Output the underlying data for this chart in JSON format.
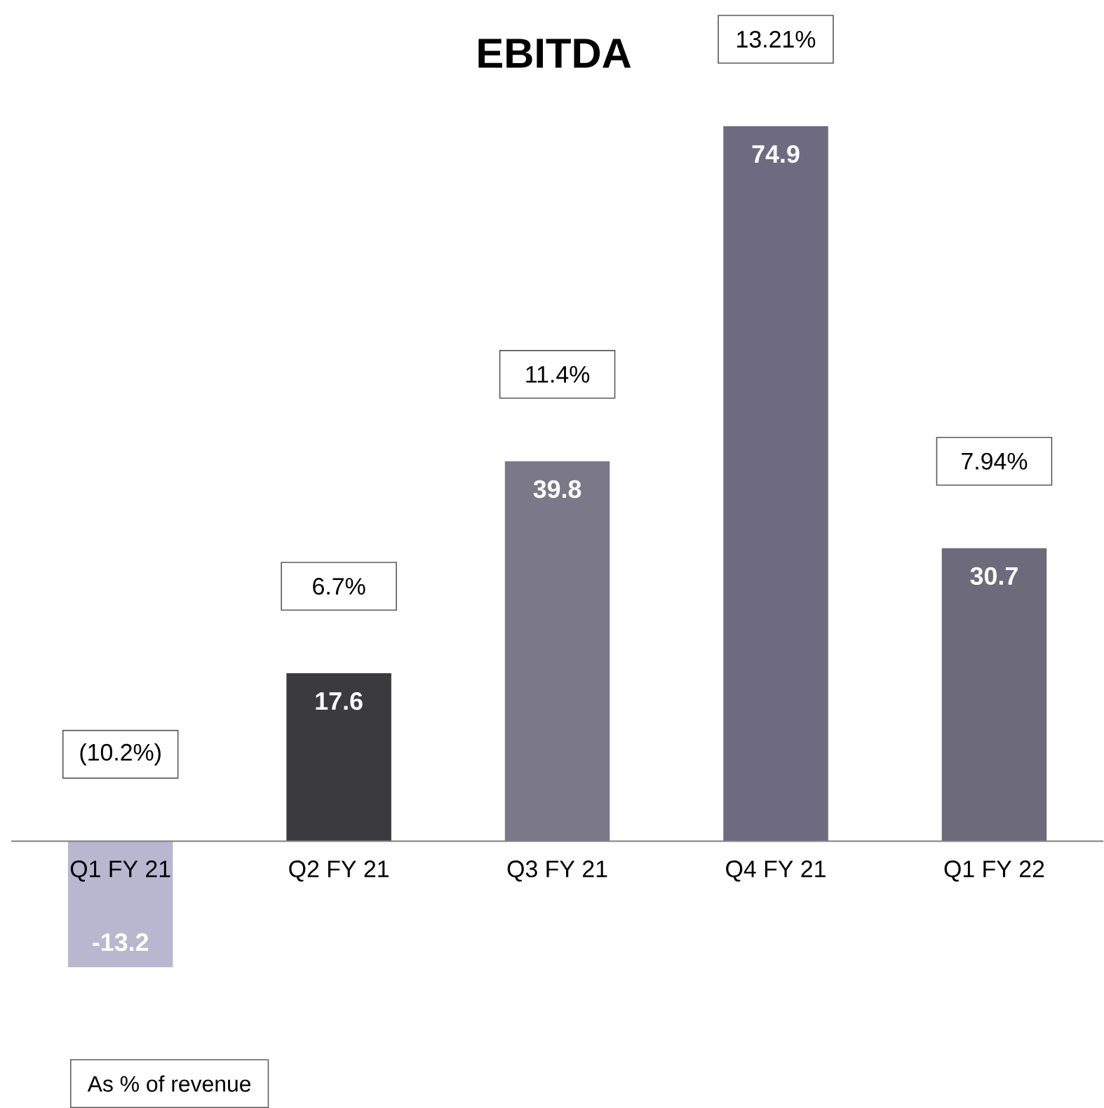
{
  "chart_data": {
    "type": "bar",
    "title": "EBITDA",
    "categories": [
      "Q1 FY 21",
      "Q2 FY 21",
      "Q3 FY 21",
      "Q4 FY 21",
      "Q1 FY 22"
    ],
    "values": [
      -13.2,
      17.6,
      39.8,
      74.9,
      30.7
    ],
    "colors": [
      "#b9b7d0",
      "#3b3b3f",
      "#7b7889",
      "#6e6b80",
      "#6d6a7c"
    ],
    "data_labels": true,
    "annotations": [
      "(10.2%)",
      "6.7%",
      "11.4%",
      "13.21%",
      "7.94%",
      "As % of revenue"
    ]
  }
}
